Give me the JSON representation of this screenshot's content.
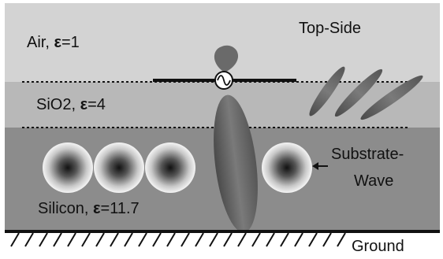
{
  "layers": {
    "air": {
      "name": "Air",
      "epsilon": "1",
      "color": "#d3d3d3"
    },
    "sio2": {
      "name": "SiO2",
      "epsilon": "4",
      "color": "#b8b8b8"
    },
    "silicon": {
      "name": "Silicon",
      "epsilon": "11.7",
      "color": "#8c8c8c"
    }
  },
  "epsilon_symbol": "ε",
  "labels": {
    "top_side": "Top-Side",
    "substrate_line1": "Substrate-",
    "substrate_line2": "Wave",
    "ground": "Ground"
  },
  "colors": {
    "ground_line": "#111111",
    "dashed_interface": "#111111",
    "lobe_fill": "#6a6a6a"
  }
}
